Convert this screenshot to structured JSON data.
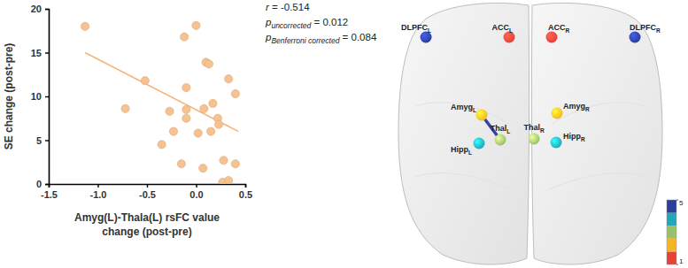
{
  "chart_data": [
    {
      "type": "scatter",
      "x": [
        -1.13,
        -0.72,
        -0.52,
        -0.35,
        -0.27,
        -0.23,
        -0.15,
        -0.12,
        -0.1,
        -0.1,
        -0.1,
        0.0,
        0.02,
        0.07,
        0.08,
        0.1,
        0.13,
        0.15,
        0.17,
        0.22,
        0.23,
        0.27,
        0.28,
        0.33,
        0.33,
        0.4,
        0.4
      ],
      "values": [
        18.0,
        8.6,
        11.8,
        4.5,
        8.3,
        6.0,
        2.3,
        16.8,
        11.0,
        8.5,
        7.5,
        18.1,
        5.8,
        1.8,
        8.6,
        13.9,
        13.7,
        6.0,
        9.2,
        7.5,
        6.8,
        0.2,
        2.7,
        12.0,
        0.4,
        10.3,
        2.3
      ],
      "color": "#f7c28f",
      "fit_line": {
        "x": [
          -1.13,
          0.43
        ],
        "values": [
          15.0,
          6.0
        ],
        "color": "#f5b57a"
      },
      "xlim": [
        -1.5,
        0.5
      ],
      "xticks": [
        -1.5,
        {
          "value": -1.0,
          "label": "-1.0"
        },
        -0.5,
        {
          "value": 0.0,
          "label": "0.0"
        },
        0.5
      ],
      "ylim": [
        0,
        20
      ],
      "yticks": [
        0,
        5,
        10,
        15,
        20
      ],
      "x_label": [
        "Amyg(L)-Thala(L) rsFC value",
        "change (post-pre)"
      ],
      "y_label": "SE change (post-pre)",
      "annotations": [
        {
          "symbol": "r",
          "subscript": null,
          "text": " = -0.514"
        },
        {
          "symbol": "p",
          "subscript": "uncorrected",
          "text": " = 0.012"
        },
        {
          "symbol": "p",
          "subscript": "Benferroni corrected",
          "text": " = 0.084"
        }
      ]
    },
    {
      "type": "network",
      "nodes": [
        {
          "label": "DLPFC",
          "subscript": "L",
          "value": 5
        },
        {
          "label": "ACC",
          "subscript": "L",
          "value": 1
        },
        {
          "label": "ACC",
          "subscript": "R",
          "value": 1
        },
        {
          "label": "DLPFC",
          "subscript": "R",
          "value": 5
        },
        {
          "label": "Amyg",
          "subscript": "L",
          "value": 2
        },
        {
          "label": "Amyg",
          "subscript": "R",
          "value": 2
        },
        {
          "label": "Thal",
          "subscript": "L",
          "value": 3
        },
        {
          "label": "Thal",
          "subscript": "R",
          "value": 3
        },
        {
          "label": "Hipp",
          "subscript": "L",
          "value": 4
        },
        {
          "label": "Hipp",
          "subscript": "R",
          "value": 4
        }
      ],
      "edges": [
        {
          "source": 4,
          "target": 6,
          "color": "#3444a6"
        }
      ],
      "colorbar": {
        "range": [
          1,
          5
        ],
        "ticks": [
          1,
          5
        ],
        "colors": [
          "#e5423a",
          "#f5b623",
          "#9cc06a",
          "#22a8ba",
          "#2d3f9c"
        ]
      }
    }
  ]
}
